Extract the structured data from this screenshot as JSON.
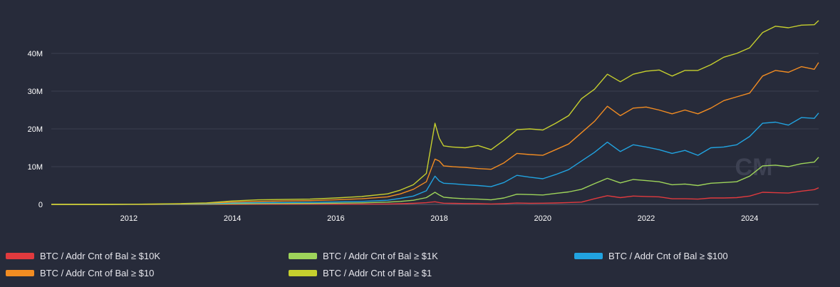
{
  "chart_data": {
    "type": "line",
    "title": "",
    "xlabel": "",
    "ylabel": "",
    "x_range": [
      "2010-07",
      "2025-05"
    ],
    "ylim": [
      0,
      50000000
    ],
    "x_ticks": [
      "2012",
      "2014",
      "2016",
      "2018",
      "2020",
      "2022",
      "2024"
    ],
    "y_ticks": [
      "0",
      "10M",
      "20M",
      "30M",
      "40M"
    ],
    "y_tick_values": [
      0,
      10000000,
      20000000,
      30000000,
      40000000
    ],
    "grid": "horizontal",
    "legend_position": "bottom",
    "x": [
      "2010-07",
      "2011-01",
      "2011-07",
      "2012-01",
      "2012-07",
      "2013-01",
      "2013-07",
      "2014-01",
      "2014-07",
      "2015-01",
      "2015-07",
      "2016-01",
      "2016-07",
      "2017-01",
      "2017-04",
      "2017-07",
      "2017-10",
      "2017-12",
      "2018-01",
      "2018-02",
      "2018-04",
      "2018-07",
      "2018-10",
      "2019-01",
      "2019-04",
      "2019-07",
      "2019-10",
      "2020-01",
      "2020-04",
      "2020-07",
      "2020-10",
      "2021-01",
      "2021-04",
      "2021-07",
      "2021-10",
      "2022-01",
      "2022-04",
      "2022-07",
      "2022-10",
      "2023-01",
      "2023-04",
      "2023-07",
      "2023-10",
      "2024-01",
      "2024-04",
      "2024-07",
      "2024-10",
      "2025-01",
      "2025-04",
      "2025-05"
    ],
    "series": [
      {
        "name": "BTC / Addr Cnt of Bal ≥ $10K",
        "color": "#e03a3e",
        "values": [
          0,
          0,
          0,
          0,
          0,
          0,
          0,
          20000,
          30000,
          40000,
          50000,
          60000,
          80000,
          120000,
          180000,
          280000,
          450000,
          700000,
          500000,
          330000,
          280000,
          220000,
          180000,
          120000,
          200000,
          350000,
          300000,
          320000,
          380000,
          500000,
          600000,
          1500000,
          2300000,
          1800000,
          2200000,
          2100000,
          2000000,
          1500000,
          1500000,
          1400000,
          1700000,
          1700000,
          1800000,
          2200000,
          3200000,
          3100000,
          3000000,
          3500000,
          3900000,
          4400000
        ]
      },
      {
        "name": "BTC / Addr Cnt of Bal ≥ $1K",
        "color": "#9ed45a",
        "values": [
          0,
          0,
          0,
          10000,
          20000,
          40000,
          60000,
          150000,
          200000,
          220000,
          250000,
          330000,
          420000,
          600000,
          800000,
          1100000,
          1800000,
          3200000,
          2500000,
          1900000,
          1700000,
          1500000,
          1400000,
          1200000,
          1700000,
          2700000,
          2600000,
          2500000,
          2900000,
          3300000,
          4000000,
          5500000,
          6900000,
          5700000,
          6600000,
          6300000,
          6000000,
          5200000,
          5400000,
          5000000,
          5600000,
          5800000,
          6000000,
          7500000,
          10200000,
          10400000,
          10000000,
          10800000,
          11200000,
          12500000
        ]
      },
      {
        "name": "BTC / Addr Cnt of Bal ≥ $100",
        "color": "#21a3e0",
        "values": [
          0,
          0,
          0,
          20000,
          40000,
          80000,
          150000,
          350000,
          450000,
          500000,
          550000,
          650000,
          800000,
          1100000,
          1600000,
          2200000,
          3600000,
          7500000,
          6200000,
          5600000,
          5500000,
          5200000,
          5000000,
          4700000,
          5800000,
          7700000,
          7200000,
          6800000,
          7900000,
          9200000,
          11500000,
          13800000,
          16500000,
          14000000,
          15800000,
          15200000,
          14500000,
          13500000,
          14300000,
          13000000,
          15000000,
          15200000,
          15800000,
          18000000,
          21500000,
          21800000,
          21000000,
          23000000,
          22800000,
          24200000
        ]
      },
      {
        "name": "BTC / Addr Cnt of Bal ≥ $10",
        "color": "#f28c22",
        "values": [
          0,
          0,
          0,
          30000,
          80000,
          150000,
          300000,
          600000,
          800000,
          900000,
          1000000,
          1200000,
          1500000,
          2000000,
          2800000,
          4000000,
          6000000,
          12000000,
          11500000,
          10200000,
          10000000,
          9800000,
          9500000,
          9300000,
          11000000,
          13500000,
          13200000,
          13000000,
          14500000,
          16000000,
          19000000,
          22000000,
          26000000,
          23500000,
          25500000,
          25800000,
          25000000,
          24000000,
          25000000,
          24000000,
          25500000,
          27500000,
          28500000,
          29500000,
          34000000,
          35500000,
          35000000,
          36500000,
          35800000,
          37600000
        ]
      },
      {
        "name": "BTC / Addr Cnt of Bal ≥ $1",
        "color": "#c6cf2e",
        "values": [
          0,
          0,
          0,
          40000,
          100000,
          200000,
          400000,
          900000,
          1200000,
          1300000,
          1400000,
          1700000,
          2100000,
          2800000,
          3800000,
          5200000,
          8200000,
          21500000,
          17500000,
          15500000,
          15200000,
          15000000,
          15600000,
          14500000,
          17000000,
          19800000,
          20000000,
          19700000,
          21500000,
          23500000,
          28000000,
          30500000,
          34500000,
          32500000,
          34500000,
          35300000,
          35600000,
          34000000,
          35500000,
          35500000,
          37000000,
          39000000,
          40000000,
          41500000,
          45500000,
          47200000,
          46800000,
          47500000,
          47600000,
          48700000
        ]
      }
    ]
  },
  "watermark": "CM"
}
